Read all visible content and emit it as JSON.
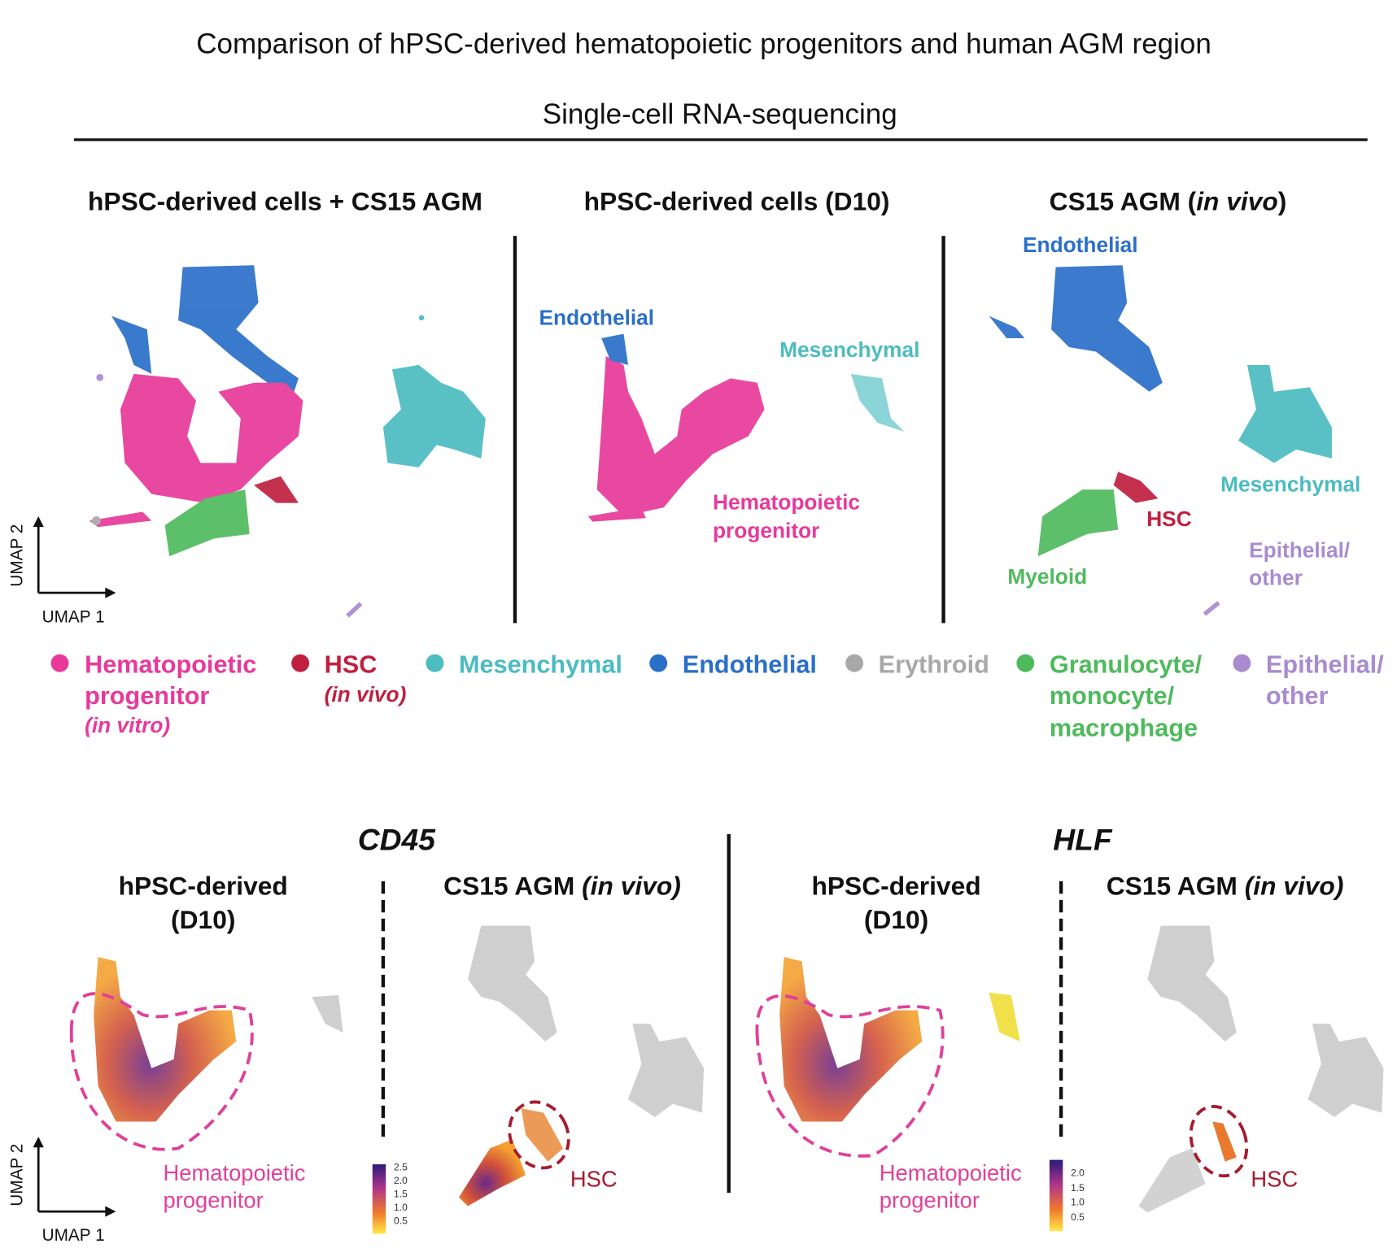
{
  "title": "Comparison of hPSC-derived hematopoietic progenitors and human AGM region",
  "subtitle": "Single-cell RNA-sequencing",
  "top_panels": [
    {
      "title": [
        "hPSC-derived cells + CS15 AGM"
      ]
    },
    {
      "title": [
        "hPSC-derived cells (D10)"
      ],
      "labels": [
        "Endothelial",
        "Mesenchymal",
        "Hematopoietic",
        "progenitor"
      ]
    },
    {
      "title": [
        "CS15 AGM (",
        "in vivo",
        ")"
      ],
      "labels": [
        "Endothelial",
        "Mesenchymal",
        "HSC",
        "Myeloid",
        "Epithelial/",
        "other"
      ]
    }
  ],
  "axes": {
    "x": "UMAP 1",
    "y": "UMAP 2"
  },
  "legend": [
    {
      "lines": [
        "Hematopoietic",
        "progenitor",
        "(in vitro)"
      ]
    },
    {
      "lines": [
        "HSC",
        "(in vivo)"
      ]
    },
    {
      "lines": [
        "Mesenchymal"
      ]
    },
    {
      "lines": [
        "Endothelial"
      ]
    },
    {
      "lines": [
        "Erythroid"
      ]
    },
    {
      "lines": [
        "Granulocyte/",
        "monocyte/",
        "macrophage"
      ]
    },
    {
      "lines": [
        "Epithelial/",
        "other"
      ]
    }
  ],
  "genes": [
    {
      "name": "CD45",
      "panels": [
        {
          "title": [
            "hPSC-derived",
            "(D10)"
          ]
        },
        {
          "title": [
            "CS15 AGM ",
            "(in vivo)"
          ]
        }
      ],
      "region_labels": [
        "Hematopoietic",
        "progenitor",
        "HSC"
      ],
      "colorbar_ticks": [
        "2.5",
        "2.0",
        "1.5",
        "1.0",
        "0.5"
      ]
    },
    {
      "name": "HLF",
      "panels": [
        {
          "title": [
            "hPSC-derived",
            "(D10)"
          ]
        },
        {
          "title": [
            "CS15 AGM ",
            "(in vivo)"
          ]
        }
      ],
      "region_labels": [
        "Hematopoietic",
        "progenitor",
        "HSC"
      ],
      "colorbar_ticks": [
        "2.0",
        "1.5",
        "1.0",
        "0.5"
      ]
    }
  ]
}
